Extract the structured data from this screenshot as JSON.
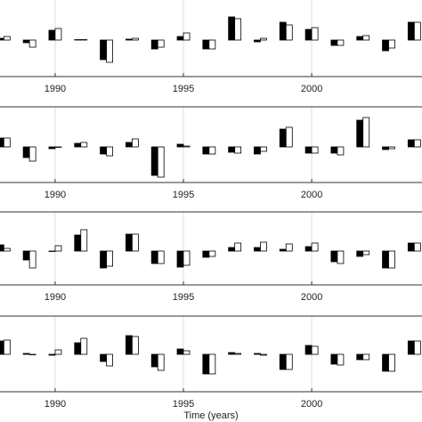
{
  "chart_data": [
    {
      "type": "bar",
      "x": [
        1988,
        1989,
        1990,
        1991,
        1992,
        1993,
        1994,
        1995,
        1996,
        1997,
        1998,
        1999,
        2000,
        2001,
        2002,
        2003,
        2004
      ],
      "series": [
        {
          "color": "#000000",
          "values": [
            0.2,
            -0.3,
            1.1,
            0.05,
            -2.2,
            0.1,
            -1.0,
            0.4,
            -1.0,
            2.6,
            -0.2,
            2.0,
            1.2,
            -0.6,
            0.4,
            -1.2,
            2.0
          ]
        },
        {
          "color": "#ffffff",
          "values": [
            0.4,
            -0.8,
            1.3,
            0.05,
            -2.5,
            0.2,
            -0.8,
            0.8,
            -1.0,
            2.4,
            0.2,
            1.7,
            1.4,
            -0.6,
            0.5,
            -0.9,
            2.0
          ]
        }
      ],
      "xlim": [
        1987.85,
        2004.3
      ],
      "xticks": [
        1990,
        1995,
        2000
      ],
      "ylim": [
        -4.1,
        4.5
      ],
      "grid": true
    },
    {
      "type": "bar",
      "x": [
        1988,
        1989,
        1990,
        1991,
        1992,
        1993,
        1994,
        1995,
        1996,
        1997,
        1998,
        1999,
        2000,
        2001,
        2002,
        2003,
        2004
      ],
      "series": [
        {
          "color": "#000000",
          "values": [
            1.0,
            -1.2,
            -0.2,
            0.4,
            -0.8,
            0.5,
            -3.2,
            0.3,
            -0.8,
            -0.6,
            -0.8,
            2.0,
            -0.7,
            -0.7,
            3.0,
            -0.3,
            0.8
          ]
        },
        {
          "color": "#ffffff",
          "values": [
            1.0,
            -1.6,
            0,
            0.5,
            -1.0,
            0.9,
            -3.4,
            0.1,
            -0.8,
            -0.7,
            -0.5,
            2.2,
            -0.7,
            -0.9,
            3.3,
            -0.2,
            0.8
          ]
        }
      ],
      "xlim": [
        1987.85,
        2004.3
      ],
      "xticks": [
        1990,
        1995,
        2000
      ],
      "ylim": [
        -4,
        4.5
      ],
      "grid": true
    },
    {
      "type": "bar",
      "x": [
        1988,
        1989,
        1990,
        1991,
        1992,
        1993,
        1994,
        1995,
        1996,
        1997,
        1998,
        1999,
        2000,
        2001,
        2002,
        2003,
        2004
      ],
      "series": [
        {
          "color": "#000000",
          "values": [
            0.7,
            -1.0,
            0,
            1.8,
            -1.9,
            1.9,
            -1.4,
            -1.8,
            -0.7,
            0.4,
            0.4,
            0.2,
            0.5,
            -1.2,
            -0.6,
            -1.9,
            0.9
          ]
        },
        {
          "color": "#ffffff",
          "values": [
            0.3,
            -1.9,
            0.6,
            2.4,
            -1.7,
            1.9,
            -1.4,
            -1.6,
            -0.6,
            0.9,
            1.0,
            0.8,
            0.9,
            -1.4,
            -0.4,
            -1.9,
            0.9
          ]
        }
      ],
      "xlim": [
        1987.85,
        2004.3
      ],
      "xticks": [
        1990,
        1995,
        2000
      ],
      "ylim": [
        -3.8,
        4.4
      ],
      "grid": true
    },
    {
      "type": "bar",
      "x": [
        1988,
        1989,
        1990,
        1991,
        1992,
        1993,
        1994,
        1995,
        1996,
        1997,
        1998,
        1999,
        2000,
        2001,
        2002,
        2003,
        2004
      ],
      "series": [
        {
          "color": "#000000",
          "values": [
            1.5,
            0.1,
            -0.1,
            1.3,
            -0.8,
            2.1,
            -1.4,
            0.6,
            -2.2,
            0.2,
            0.1,
            -1.7,
            1.0,
            -1.1,
            -0.6,
            -1.9,
            1.5
          ]
        },
        {
          "color": "#ffffff",
          "values": [
            1.6,
            0,
            0.5,
            1.8,
            -1.3,
            2.0,
            -1.8,
            0.4,
            -2.2,
            0.1,
            -0.1,
            -1.7,
            0.9,
            -1.2,
            -0.6,
            -1.9,
            1.5
          ]
        }
      ],
      "xlim": [
        1987.85,
        2004.3
      ],
      "xticks": [
        1990,
        1995,
        2000
      ],
      "ylim": [
        -4.2,
        4.3
      ],
      "grid": true,
      "xlabel": "Time (years)"
    }
  ]
}
